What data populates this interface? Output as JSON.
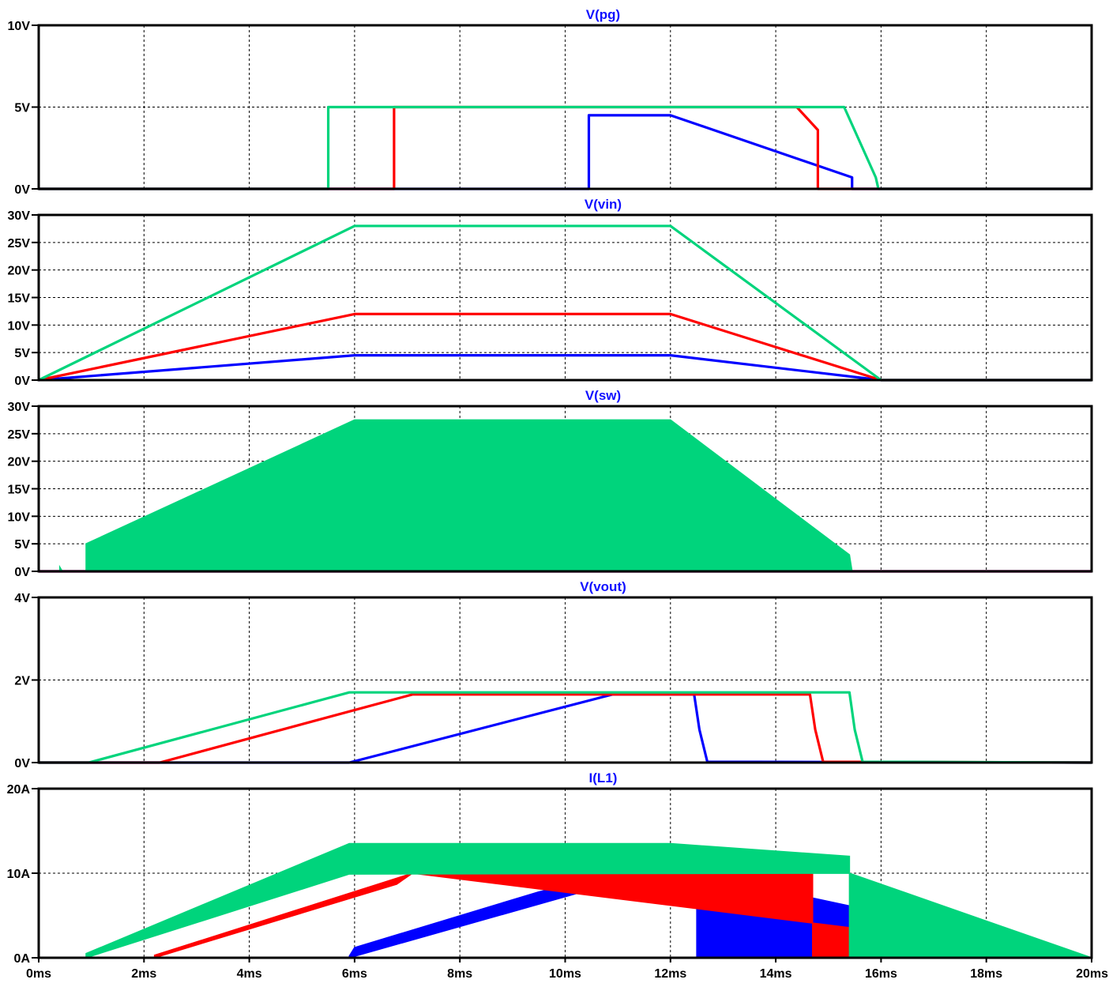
{
  "colors": {
    "background": "#ffffff",
    "frame": "#000000",
    "grid": "#000000",
    "title": "#1010ff",
    "series": {
      "blue": "#0000ff",
      "red": "#ff0000",
      "green": "#00d47c"
    }
  },
  "chart_data": [
    {
      "type": "line",
      "title": "V(pg)",
      "xlim": [
        0,
        20
      ],
      "ylim": [
        0,
        10
      ],
      "x_ticks": [
        "0ms",
        "2ms",
        "4ms",
        "6ms",
        "8ms",
        "10ms",
        "12ms",
        "14ms",
        "16ms",
        "18ms",
        "20ms"
      ],
      "y_ticks": [
        {
          "value": 0,
          "label": "0V"
        },
        {
          "value": 5,
          "label": "5V"
        },
        {
          "value": 10,
          "label": "10V"
        }
      ],
      "grid": true,
      "series": [
        {
          "color": "blue",
          "points": [
            [
              0,
              0
            ],
            [
              10.45,
              0
            ],
            [
              10.45,
              4.5
            ],
            [
              12,
              4.5
            ],
            [
              15.45,
              0.7
            ],
            [
              15.45,
              0
            ],
            [
              20,
              0
            ]
          ]
        },
        {
          "color": "red",
          "points": [
            [
              0,
              0
            ],
            [
              6.75,
              0
            ],
            [
              6.75,
              5
            ],
            [
              14.4,
              5
            ],
            [
              14.8,
              3.6
            ],
            [
              14.8,
              0
            ],
            [
              20,
              0
            ]
          ]
        },
        {
          "color": "green",
          "points": [
            [
              0,
              0
            ],
            [
              5.5,
              0
            ],
            [
              5.5,
              5
            ],
            [
              15.3,
              5
            ],
            [
              15.9,
              0.7
            ],
            [
              15.95,
              0
            ],
            [
              20,
              0
            ]
          ]
        }
      ]
    },
    {
      "type": "line",
      "title": "V(vin)",
      "xlim": [
        0,
        20
      ],
      "ylim": [
        0,
        30
      ],
      "x_ticks": [
        "0ms",
        "2ms",
        "4ms",
        "6ms",
        "8ms",
        "10ms",
        "12ms",
        "14ms",
        "16ms",
        "18ms",
        "20ms"
      ],
      "y_ticks": [
        {
          "value": 0,
          "label": "0V"
        },
        {
          "value": 5,
          "label": "5V"
        },
        {
          "value": 10,
          "label": "10V"
        },
        {
          "value": 15,
          "label": "15V"
        },
        {
          "value": 20,
          "label": "20V"
        },
        {
          "value": 25,
          "label": "25V"
        },
        {
          "value": 30,
          "label": "30V"
        }
      ],
      "grid": true,
      "series": [
        {
          "color": "blue",
          "points": [
            [
              0,
              0
            ],
            [
              6,
              4.5
            ],
            [
              12,
              4.5
            ],
            [
              16,
              0
            ],
            [
              20,
              0
            ]
          ]
        },
        {
          "color": "red",
          "points": [
            [
              0,
              0
            ],
            [
              6,
              12
            ],
            [
              12,
              12
            ],
            [
              16,
              0
            ],
            [
              20,
              0
            ]
          ]
        },
        {
          "color": "green",
          "points": [
            [
              0,
              0
            ],
            [
              6,
              28
            ],
            [
              12,
              28
            ],
            [
              16,
              0
            ],
            [
              20,
              0
            ]
          ]
        }
      ]
    },
    {
      "type": "area",
      "title": "V(sw)",
      "xlim": [
        0,
        20
      ],
      "ylim": [
        0,
        30
      ],
      "x_ticks": [
        "0ms",
        "2ms",
        "4ms",
        "6ms",
        "8ms",
        "10ms",
        "12ms",
        "14ms",
        "16ms",
        "18ms",
        "20ms"
      ],
      "y_ticks": [
        {
          "value": 0,
          "label": "0V"
        },
        {
          "value": 5,
          "label": "5V"
        },
        {
          "value": 10,
          "label": "10V"
        },
        {
          "value": 15,
          "label": "15V"
        },
        {
          "value": 20,
          "label": "20V"
        },
        {
          "value": 25,
          "label": "25V"
        },
        {
          "value": 30,
          "label": "30V"
        }
      ],
      "grid": true,
      "series": [
        {
          "color": "blue",
          "points": [
            [
              0,
              0
            ],
            [
              20,
              0
            ]
          ]
        },
        {
          "color": "red",
          "points": [
            [
              0,
              0
            ],
            [
              20,
              0
            ]
          ]
        },
        {
          "color": "green",
          "points": [
            [
              0,
              0
            ],
            [
              0.4,
              0
            ],
            [
              0.4,
              0.8
            ],
            [
              0.45,
              0
            ],
            [
              0.9,
              0
            ],
            [
              0.9,
              5
            ],
            [
              6,
              27.5
            ],
            [
              12,
              27.5
            ],
            [
              15.4,
              3
            ],
            [
              15.45,
              0
            ],
            [
              20,
              0
            ]
          ],
          "fill": true
        }
      ]
    },
    {
      "type": "line",
      "title": "V(vout)",
      "xlim": [
        0,
        20
      ],
      "ylim": [
        0,
        4
      ],
      "x_ticks": [
        "0ms",
        "2ms",
        "4ms",
        "6ms",
        "8ms",
        "10ms",
        "12ms",
        "14ms",
        "16ms",
        "18ms",
        "20ms"
      ],
      "y_ticks": [
        {
          "value": 0,
          "label": "0V"
        },
        {
          "value": 2,
          "label": "2V"
        },
        {
          "value": 4,
          "label": "4V"
        }
      ],
      "grid": true,
      "series": [
        {
          "color": "blue",
          "points": [
            [
              0,
              0
            ],
            [
              5.9,
              0
            ],
            [
              10.9,
              1.65
            ],
            [
              12.45,
              1.65
            ],
            [
              12.55,
              0.8
            ],
            [
              12.7,
              0.02
            ],
            [
              20,
              0
            ]
          ]
        },
        {
          "color": "red",
          "points": [
            [
              0,
              0
            ],
            [
              2.3,
              0
            ],
            [
              7.1,
              1.65
            ],
            [
              14.65,
              1.65
            ],
            [
              14.75,
              0.8
            ],
            [
              14.9,
              0.02
            ],
            [
              20,
              0
            ]
          ]
        },
        {
          "color": "green",
          "points": [
            [
              0,
              0
            ],
            [
              0.95,
              0
            ],
            [
              5.9,
              1.7
            ],
            [
              15.4,
              1.7
            ],
            [
              15.5,
              0.8
            ],
            [
              15.65,
              0.02
            ],
            [
              20,
              0
            ]
          ]
        }
      ]
    },
    {
      "type": "area",
      "title": "I(L1)",
      "xlim": [
        0,
        20
      ],
      "ylim": [
        0,
        20
      ],
      "x_ticks": [
        "0ms",
        "2ms",
        "4ms",
        "6ms",
        "8ms",
        "10ms",
        "12ms",
        "14ms",
        "16ms",
        "18ms",
        "20ms"
      ],
      "y_ticks": [
        {
          "value": 0,
          "label": "0A"
        },
        {
          "value": 10,
          "label": "10A"
        },
        {
          "value": 20,
          "label": "20A"
        }
      ],
      "grid": true,
      "series": [
        {
          "color": "blue",
          "points": [
            [
              0,
              0
            ],
            [
              5.9,
              0
            ],
            [
              5.9,
              0.2
            ],
            [
              6,
              1.2
            ],
            [
              9.5,
              7.8
            ],
            [
              11,
              10
            ],
            [
              12.5,
              10
            ],
            [
              12.5,
              0
            ],
            [
              20,
              0
            ]
          ],
          "band_low": [
            [
              5.9,
              0
            ],
            [
              10.9,
              8.8
            ],
            [
              12.5,
              10
            ]
          ],
          "fill": true
        },
        {
          "color": "red",
          "points": [
            [
              0,
              0
            ],
            [
              2.2,
              0
            ],
            [
              2.2,
              0.3
            ],
            [
              7.1,
              10
            ],
            [
              14.7,
              10
            ],
            [
              14.7,
              0
            ],
            [
              20,
              0
            ]
          ],
          "band_low": [
            [
              2.2,
              0
            ],
            [
              6.8,
              8.7
            ],
            [
              7.1,
              10
            ]
          ],
          "fill": true
        },
        {
          "color": "green",
          "points": [
            [
              0,
              0
            ],
            [
              0.9,
              0
            ],
            [
              0.9,
              0.5
            ],
            [
              5.9,
              13.5
            ],
            [
              12,
              13.5
            ],
            [
              15.4,
              12
            ],
            [
              15.4,
              0
            ],
            [
              20,
              0
            ]
          ],
          "band_low": [
            [
              0.9,
              0
            ],
            [
              5.9,
              9.9
            ],
            [
              15.4,
              10
            ]
          ],
          "fill": true
        }
      ]
    }
  ]
}
